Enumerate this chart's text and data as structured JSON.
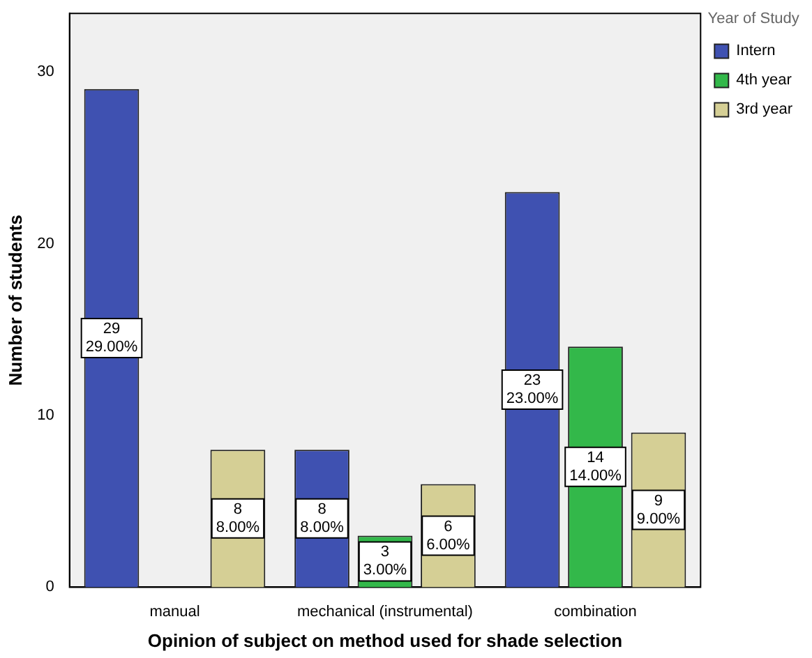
{
  "chart_data": {
    "type": "bar",
    "xlabel": "Opinion of subject on method used for shade selection",
    "ylabel": "Number of students",
    "legend_title": "Year of Study",
    "categories": [
      "manual",
      "mechanical (instrumental)",
      "combination"
    ],
    "series": [
      {
        "name": "Intern",
        "color": "#3f51b1",
        "values": [
          29,
          8,
          23
        ],
        "value_labels": [
          "29\n29.00%",
          "8\n8.00%",
          "23\n23.00%"
        ]
      },
      {
        "name": "4th year",
        "color": "#33b84a",
        "values": [
          null,
          3,
          14
        ],
        "value_labels": [
          null,
          "3\n3.00%",
          "14\n14.00%"
        ]
      },
      {
        "name": "3rd year",
        "color": "#d5cf95",
        "values": [
          8,
          6,
          9
        ],
        "value_labels": [
          "8\n8.00%",
          "6\n6.00%",
          "9\n9.00%"
        ]
      }
    ],
    "ylim": [
      0,
      33.4
    ],
    "yticks": [
      0,
      10,
      20,
      30
    ],
    "grid": false,
    "legend": "right"
  }
}
